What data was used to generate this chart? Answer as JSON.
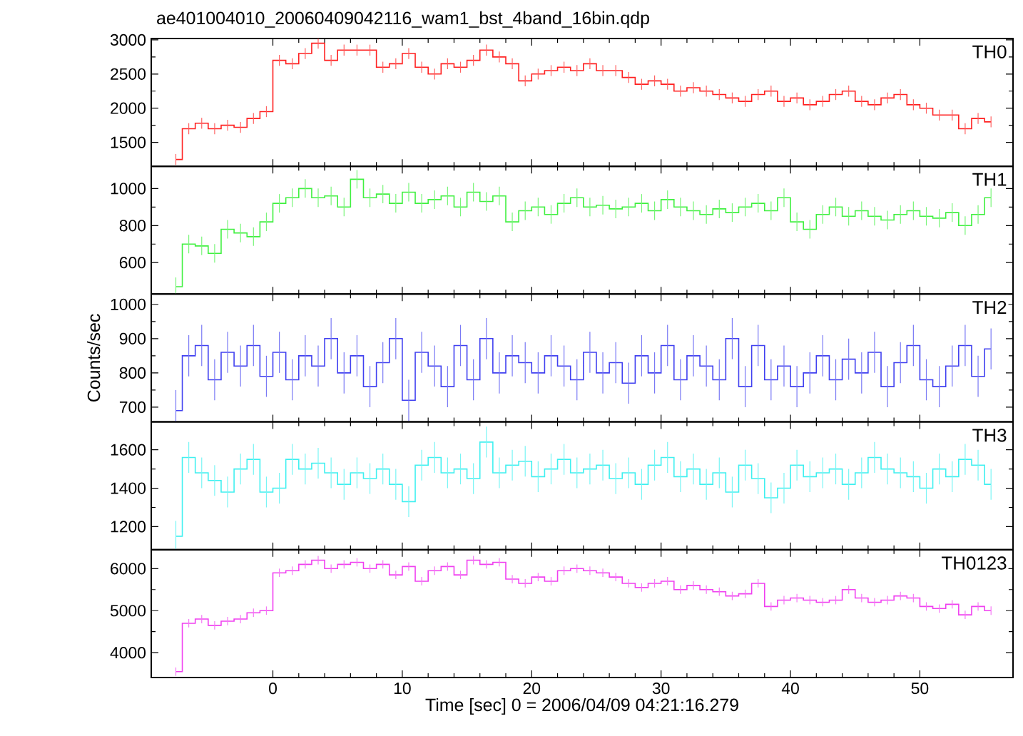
{
  "chart_data": [
    {
      "type": "step",
      "title": "ae401004010_20060409042116_wam1_bst_4band_16bin.qdp",
      "annotations": [
        "TH0"
      ],
      "tick_labels": "y",
      "xlim": [
        -9.4,
        57.2
      ],
      "ylim": [
        1150,
        3020
      ],
      "xticks": [
        0,
        10,
        20,
        30,
        40,
        50
      ],
      "yticks": [
        1500,
        2000,
        2500,
        3000
      ],
      "series": [
        {
          "color": "#ff2020",
          "x": [
            -7.5,
            -6.5,
            -5.5,
            -4.5,
            -3.5,
            -2.5,
            -1.5,
            -0.5,
            0.5,
            1.5,
            2.5,
            3.5,
            4.5,
            5.5,
            6.5,
            7.5,
            8.5,
            9.5,
            10.5,
            11.5,
            12.5,
            13.5,
            14.5,
            15.5,
            16.5,
            17.5,
            18.5,
            19.5,
            20.5,
            21.5,
            22.5,
            23.5,
            24.5,
            25.5,
            26.5,
            27.5,
            28.5,
            29.5,
            30.5,
            31.5,
            32.5,
            33.5,
            34.5,
            35.5,
            36.5,
            37.5,
            38.5,
            39.5,
            40.5,
            41.5,
            42.5,
            43.5,
            44.5,
            45.5,
            46.5,
            47.5,
            48.5,
            49.5,
            50.5,
            51.5,
            52.5,
            53.5,
            54.5,
            55.5
          ],
          "values": [
            1250,
            1700,
            1780,
            1700,
            1750,
            1720,
            1850,
            1950,
            2700,
            2650,
            2800,
            2950,
            2700,
            2850,
            2850,
            2850,
            2600,
            2650,
            2800,
            2600,
            2500,
            2650,
            2600,
            2700,
            2850,
            2750,
            2650,
            2400,
            2500,
            2550,
            2600,
            2550,
            2650,
            2550,
            2550,
            2450,
            2350,
            2400,
            2350,
            2250,
            2300,
            2250,
            2200,
            2150,
            2100,
            2200,
            2250,
            2100,
            2150,
            2050,
            2100,
            2200,
            2250,
            2100,
            2050,
            2150,
            2200,
            2050,
            2000,
            1900,
            1900,
            1700,
            1850,
            1800
          ],
          "errors": [
            80,
            80,
            80,
            80,
            80,
            80,
            80,
            80,
            80,
            80,
            80,
            80,
            80,
            80,
            80,
            80,
            80,
            80,
            80,
            80,
            80,
            80,
            80,
            80,
            80,
            80,
            80,
            80,
            80,
            80,
            80,
            80,
            80,
            80,
            80,
            80,
            80,
            80,
            80,
            80,
            80,
            80,
            80,
            80,
            80,
            80,
            80,
            80,
            80,
            80,
            80,
            80,
            80,
            80,
            80,
            80,
            80,
            80,
            80,
            80,
            80,
            80,
            80,
            80
          ]
        }
      ]
    },
    {
      "type": "step",
      "annotations": [
        "TH1"
      ],
      "tick_labels": "y",
      "xlim": [
        -9.4,
        57.2
      ],
      "ylim": [
        430,
        1120
      ],
      "xticks": [
        0,
        10,
        20,
        30,
        40,
        50
      ],
      "yticks": [
        600,
        800,
        1000
      ],
      "series": [
        {
          "color": "#40f040",
          "x": [
            -7.5,
            -6.5,
            -5.5,
            -4.5,
            -3.5,
            -2.5,
            -1.5,
            -0.5,
            0.5,
            1.5,
            2.5,
            3.5,
            4.5,
            5.5,
            6.5,
            7.5,
            8.5,
            9.5,
            10.5,
            11.5,
            12.5,
            13.5,
            14.5,
            15.5,
            16.5,
            17.5,
            18.5,
            19.5,
            20.5,
            21.5,
            22.5,
            23.5,
            24.5,
            25.5,
            26.5,
            27.5,
            28.5,
            29.5,
            30.5,
            31.5,
            32.5,
            33.5,
            34.5,
            35.5,
            36.5,
            37.5,
            38.5,
            39.5,
            40.5,
            41.5,
            42.5,
            43.5,
            44.5,
            45.5,
            46.5,
            47.5,
            48.5,
            49.5,
            50.5,
            51.5,
            52.5,
            53.5,
            54.5,
            55.5
          ],
          "values": [
            470,
            700,
            690,
            650,
            780,
            760,
            740,
            820,
            920,
            950,
            1000,
            950,
            960,
            900,
            1050,
            950,
            970,
            920,
            980,
            920,
            940,
            960,
            900,
            980,
            930,
            960,
            820,
            880,
            900,
            860,
            920,
            950,
            900,
            910,
            890,
            900,
            920,
            880,
            940,
            900,
            880,
            860,
            890,
            870,
            900,
            920,
            880,
            950,
            820,
            780,
            860,
            900,
            850,
            880,
            850,
            830,
            860,
            880,
            850,
            840,
            870,
            800,
            860,
            950
          ],
          "errors": [
            50,
            50,
            50,
            50,
            50,
            50,
            50,
            50,
            50,
            50,
            50,
            50,
            50,
            50,
            50,
            50,
            50,
            50,
            50,
            50,
            50,
            50,
            50,
            50,
            50,
            50,
            50,
            50,
            50,
            50,
            50,
            50,
            50,
            50,
            50,
            50,
            50,
            50,
            50,
            50,
            50,
            50,
            50,
            50,
            50,
            50,
            50,
            50,
            50,
            50,
            50,
            50,
            50,
            50,
            50,
            50,
            50,
            50,
            50,
            50,
            50,
            50,
            50,
            50
          ]
        }
      ]
    },
    {
      "type": "step",
      "annotations": [
        "TH2"
      ],
      "ylabel": "Counts/sec",
      "tick_labels": "y",
      "xlim": [
        -9.4,
        57.2
      ],
      "ylim": [
        657,
        1030
      ],
      "xticks": [
        0,
        10,
        20,
        30,
        40,
        50
      ],
      "yticks": [
        700,
        800,
        900,
        1000
      ],
      "series": [
        {
          "color": "#4040f0",
          "x": [
            -7.5,
            -6.5,
            -5.5,
            -4.5,
            -3.5,
            -2.5,
            -1.5,
            -0.5,
            0.5,
            1.5,
            2.5,
            3.5,
            4.5,
            5.5,
            6.5,
            7.5,
            8.5,
            9.5,
            10.5,
            11.5,
            12.5,
            13.5,
            14.5,
            15.5,
            16.5,
            17.5,
            18.5,
            19.5,
            20.5,
            21.5,
            22.5,
            23.5,
            24.5,
            25.5,
            26.5,
            27.5,
            28.5,
            29.5,
            30.5,
            31.5,
            32.5,
            33.5,
            34.5,
            35.5,
            36.5,
            37.5,
            38.5,
            39.5,
            40.5,
            41.5,
            42.5,
            43.5,
            44.5,
            45.5,
            46.5,
            47.5,
            48.5,
            49.5,
            50.5,
            51.5,
            52.5,
            53.5,
            54.5,
            55.5
          ],
          "values": [
            690,
            850,
            880,
            780,
            860,
            820,
            880,
            790,
            860,
            780,
            850,
            820,
            900,
            800,
            850,
            760,
            830,
            900,
            720,
            860,
            820,
            760,
            880,
            780,
            900,
            800,
            850,
            830,
            800,
            850,
            820,
            780,
            860,
            800,
            830,
            770,
            850,
            800,
            880,
            780,
            850,
            820,
            780,
            900,
            760,
            880,
            780,
            820,
            760,
            800,
            850,
            780,
            840,
            800,
            860,
            760,
            830,
            880,
            780,
            760,
            820,
            880,
            790,
            870
          ],
          "errors": [
            60,
            60,
            60,
            60,
            60,
            60,
            60,
            60,
            60,
            60,
            60,
            60,
            60,
            60,
            60,
            60,
            60,
            60,
            60,
            60,
            60,
            60,
            60,
            60,
            60,
            60,
            60,
            60,
            60,
            60,
            60,
            60,
            60,
            60,
            60,
            60,
            60,
            60,
            60,
            60,
            60,
            60,
            60,
            60,
            60,
            60,
            60,
            60,
            60,
            60,
            60,
            60,
            60,
            60,
            60,
            60,
            60,
            60,
            60,
            60,
            60,
            60,
            60,
            60
          ]
        }
      ]
    },
    {
      "type": "step",
      "annotations": [
        "TH3"
      ],
      "tick_labels": "y",
      "xlim": [
        -9.4,
        57.2
      ],
      "ylim": [
        1080,
        1745
      ],
      "xticks": [
        0,
        10,
        20,
        30,
        40,
        50
      ],
      "yticks": [
        1200,
        1400,
        1600
      ],
      "series": [
        {
          "color": "#40f0f0",
          "x": [
            -7.5,
            -6.5,
            -5.5,
            -4.5,
            -3.5,
            -2.5,
            -1.5,
            -0.5,
            0.5,
            1.5,
            2.5,
            3.5,
            4.5,
            5.5,
            6.5,
            7.5,
            8.5,
            9.5,
            10.5,
            11.5,
            12.5,
            13.5,
            14.5,
            15.5,
            16.5,
            17.5,
            18.5,
            19.5,
            20.5,
            21.5,
            22.5,
            23.5,
            24.5,
            25.5,
            26.5,
            27.5,
            28.5,
            29.5,
            30.5,
            31.5,
            32.5,
            33.5,
            34.5,
            35.5,
            36.5,
            37.5,
            38.5,
            39.5,
            40.5,
            41.5,
            42.5,
            43.5,
            44.5,
            45.5,
            46.5,
            47.5,
            48.5,
            49.5,
            50.5,
            51.5,
            52.5,
            53.5,
            54.5,
            55.5
          ],
          "values": [
            1150,
            1560,
            1480,
            1440,
            1380,
            1500,
            1550,
            1380,
            1400,
            1550,
            1500,
            1530,
            1480,
            1420,
            1480,
            1450,
            1500,
            1420,
            1330,
            1520,
            1560,
            1480,
            1500,
            1450,
            1640,
            1480,
            1520,
            1540,
            1460,
            1500,
            1550,
            1480,
            1500,
            1520,
            1450,
            1480,
            1420,
            1520,
            1560,
            1460,
            1500,
            1420,
            1480,
            1380,
            1520,
            1450,
            1350,
            1400,
            1520,
            1460,
            1480,
            1500,
            1420,
            1480,
            1560,
            1500,
            1480,
            1460,
            1400,
            1500,
            1460,
            1550,
            1520,
            1420
          ],
          "errors": [
            80,
            80,
            80,
            80,
            80,
            80,
            80,
            80,
            80,
            80,
            80,
            80,
            80,
            80,
            80,
            80,
            80,
            80,
            80,
            80,
            80,
            80,
            80,
            80,
            80,
            80,
            80,
            80,
            80,
            80,
            80,
            80,
            80,
            80,
            80,
            80,
            80,
            80,
            80,
            80,
            80,
            80,
            80,
            80,
            80,
            80,
            80,
            80,
            80,
            80,
            80,
            80,
            80,
            80,
            80,
            80,
            80,
            80,
            80,
            80,
            80,
            80,
            80,
            80
          ]
        }
      ]
    },
    {
      "type": "step",
      "annotations": [
        "TH0123"
      ],
      "xlabel": "Time [sec] 0 = 2006/04/09 04:21:16.279",
      "xlim": [
        -9.4,
        57.2
      ],
      "ylim": [
        3410,
        6450
      ],
      "xticks": [
        0,
        10,
        20,
        30,
        40,
        50
      ],
      "yticks": [
        4000,
        5000,
        6000
      ],
      "series": [
        {
          "color": "#f040f0",
          "x": [
            -7.5,
            -6.5,
            -5.5,
            -4.5,
            -3.5,
            -2.5,
            -1.5,
            -0.5,
            0.5,
            1.5,
            2.5,
            3.5,
            4.5,
            5.5,
            6.5,
            7.5,
            8.5,
            9.5,
            10.5,
            11.5,
            12.5,
            13.5,
            14.5,
            15.5,
            16.5,
            17.5,
            18.5,
            19.5,
            20.5,
            21.5,
            22.5,
            23.5,
            24.5,
            25.5,
            26.5,
            27.5,
            28.5,
            29.5,
            30.5,
            31.5,
            32.5,
            33.5,
            34.5,
            35.5,
            36.5,
            37.5,
            38.5,
            39.5,
            40.5,
            41.5,
            42.5,
            43.5,
            44.5,
            45.5,
            46.5,
            47.5,
            48.5,
            49.5,
            50.5,
            51.5,
            52.5,
            53.5,
            54.5,
            55.5
          ],
          "values": [
            3550,
            4700,
            4800,
            4650,
            4750,
            4800,
            4950,
            5000,
            5900,
            5950,
            6100,
            6200,
            6000,
            6100,
            6150,
            6000,
            6100,
            5850,
            6050,
            5700,
            5950,
            6050,
            5850,
            6200,
            6100,
            6150,
            5750,
            5650,
            5800,
            5700,
            5950,
            6000,
            5950,
            5900,
            5800,
            5650,
            5550,
            5650,
            5700,
            5500,
            5600,
            5500,
            5450,
            5350,
            5400,
            5650,
            5100,
            5250,
            5300,
            5250,
            5200,
            5250,
            5500,
            5300,
            5200,
            5250,
            5350,
            5300,
            5100,
            5050,
            5150,
            4900,
            5100,
            5000
          ],
          "errors": [
            100,
            100,
            100,
            100,
            100,
            100,
            100,
            100,
            100,
            100,
            100,
            100,
            100,
            100,
            100,
            100,
            100,
            100,
            100,
            100,
            100,
            100,
            100,
            100,
            100,
            100,
            100,
            100,
            100,
            100,
            100,
            100,
            100,
            100,
            100,
            100,
            100,
            100,
            100,
            100,
            100,
            100,
            100,
            100,
            100,
            100,
            100,
            100,
            100,
            100,
            100,
            100,
            100,
            100,
            100,
            100,
            100,
            100,
            100,
            100,
            100,
            100,
            100,
            100
          ]
        }
      ]
    }
  ]
}
